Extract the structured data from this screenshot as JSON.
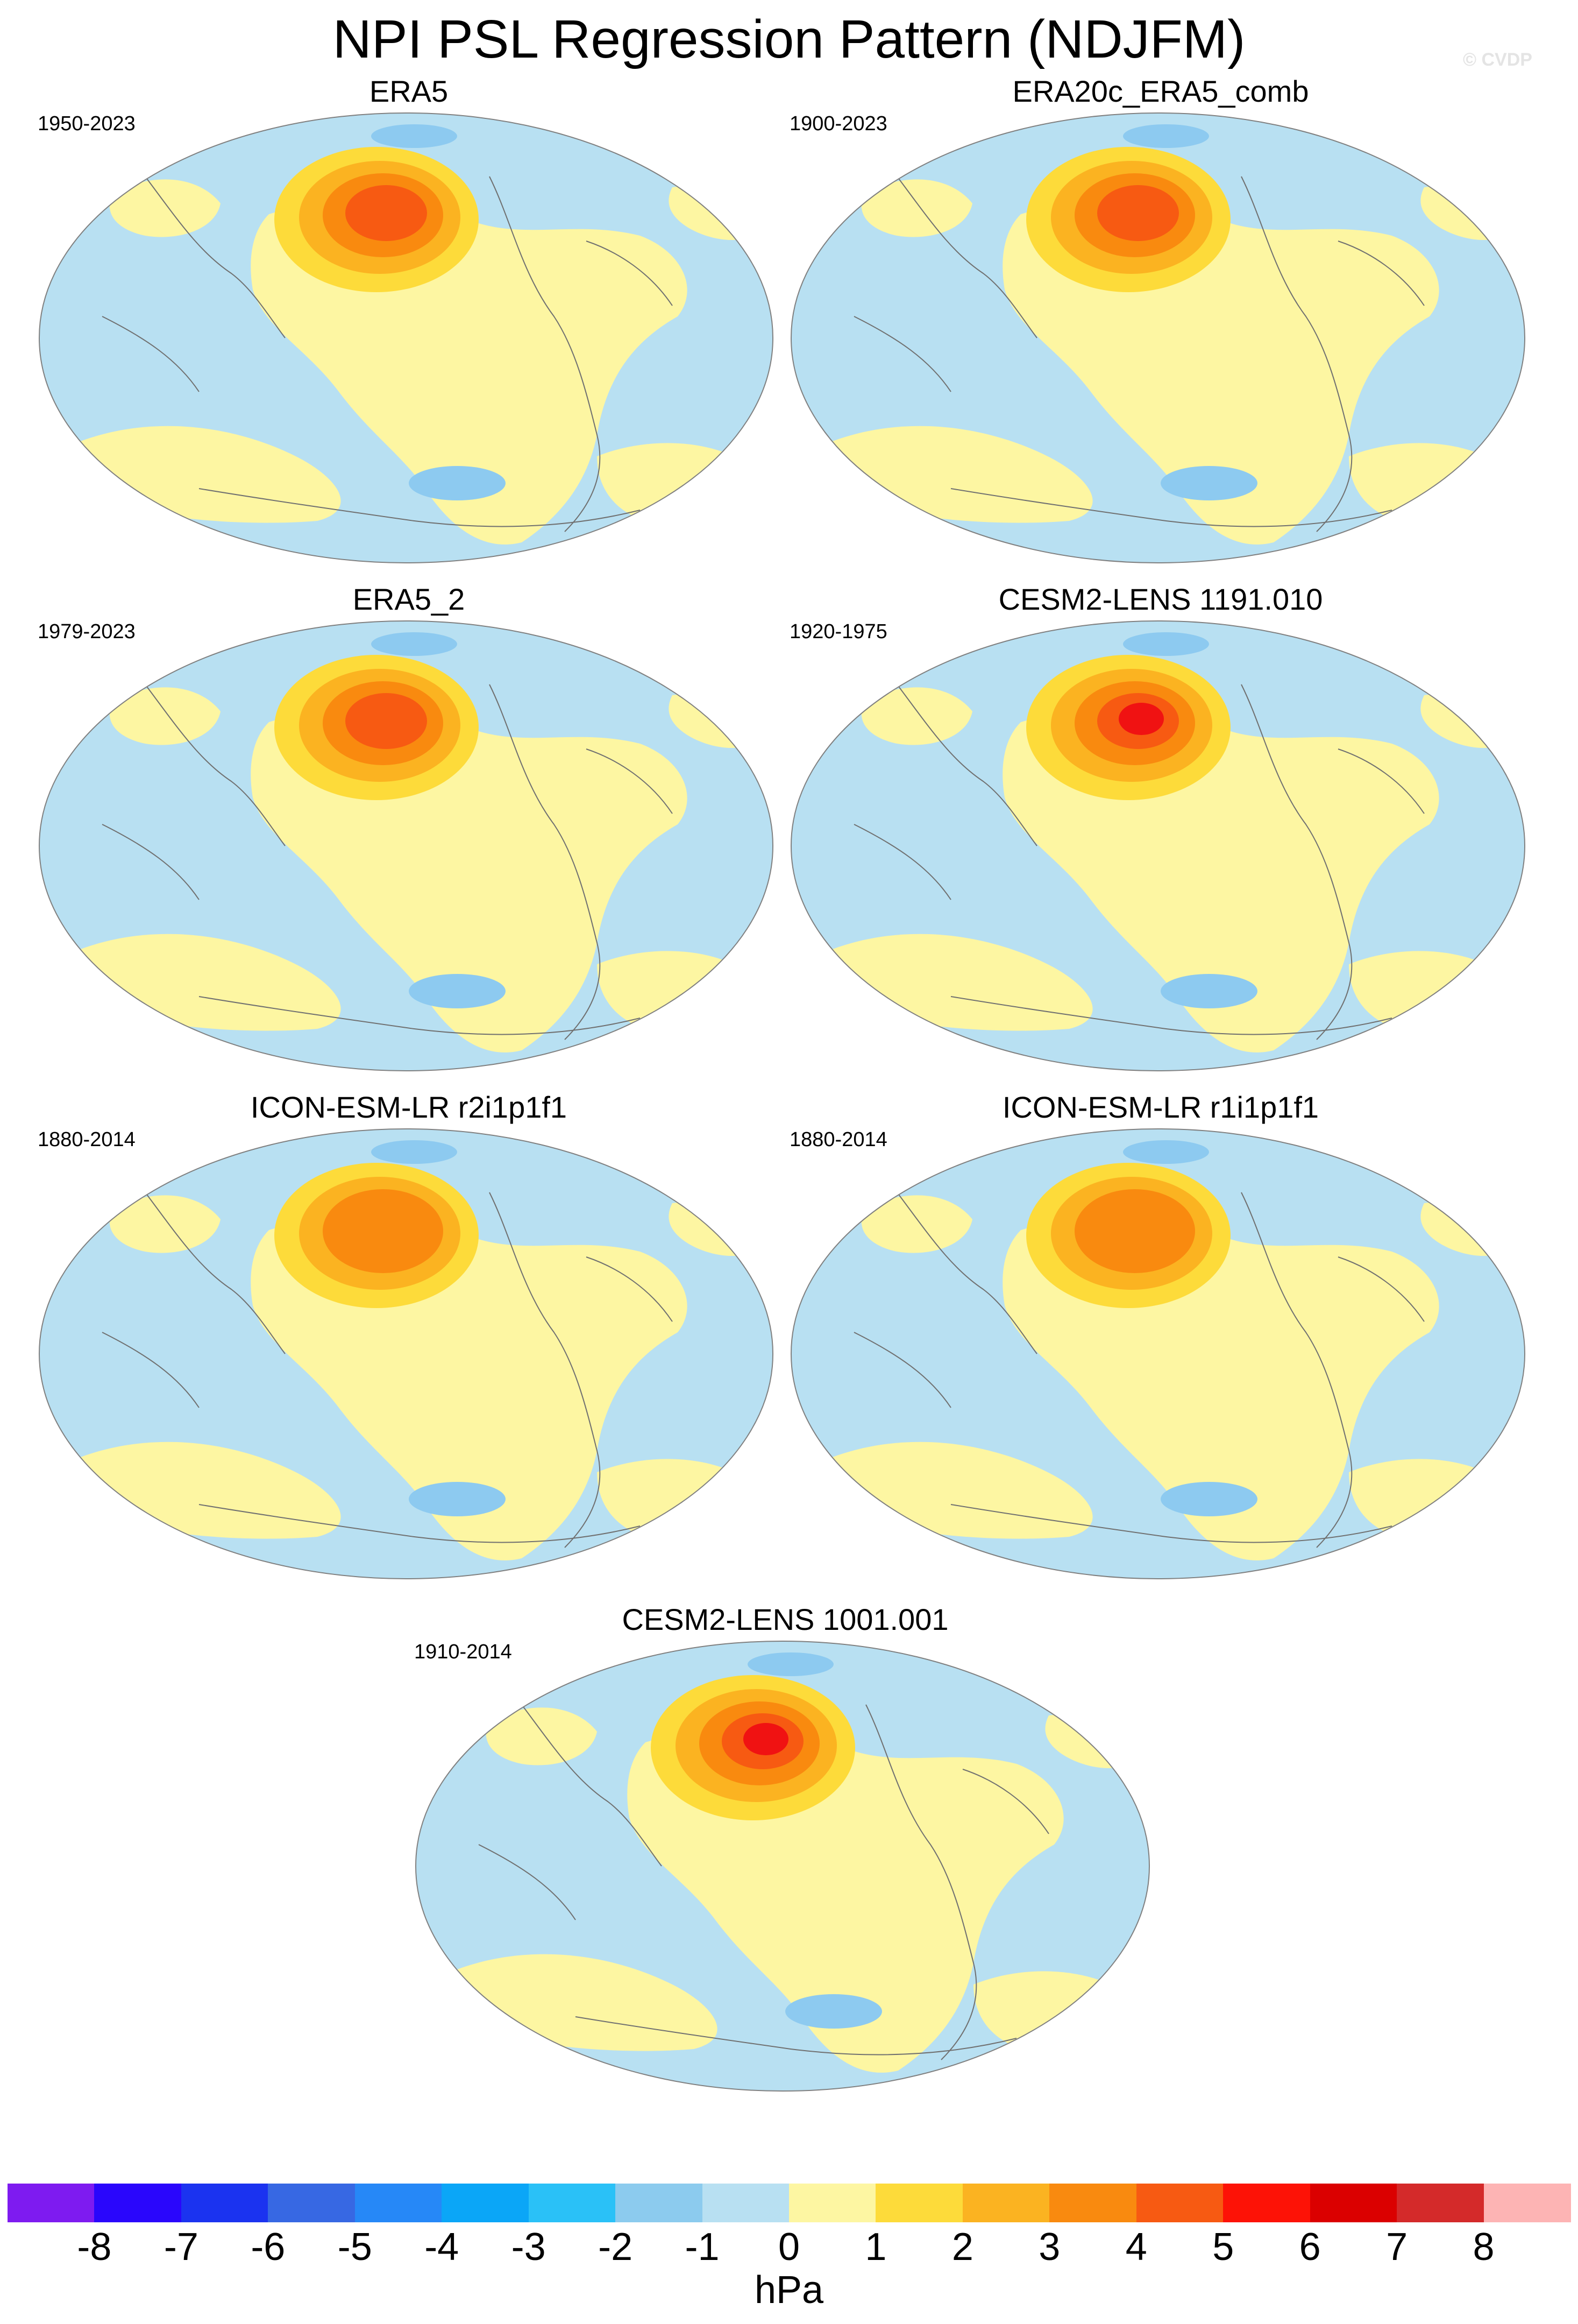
{
  "title": "NPI PSL Regression Pattern (NDJFM)",
  "watermark": "© CVDP",
  "colors": {
    "ocean_neutral": "#b8e0f2",
    "pos1": "#fdf6a2",
    "pos2": "#fddb3a",
    "pos3": "#fbb321",
    "pos4": "#f98a0f",
    "pos5": "#f75a12",
    "pos6": "#f01212",
    "neg2": "#8dcaf0",
    "neg3": "#2cb9f4",
    "coast": "#707070"
  },
  "panels": [
    {
      "title": "ERA5",
      "years": "1950-2023",
      "peak_hPa": 5
    },
    {
      "title": "ERA20c_ERA5_comb",
      "years": "1900-2023",
      "peak_hPa": 5
    },
    {
      "title": "ERA5_2",
      "years": "1979-2023",
      "peak_hPa": 5
    },
    {
      "title": "CESM2-LENS 1191.010",
      "years": "1920-1975",
      "peak_hPa": 6
    },
    {
      "title": "ICON-ESM-LR r2i1p1f1",
      "years": "1880-2014",
      "peak_hPa": 4
    },
    {
      "title": "ICON-ESM-LR r1i1p1f1",
      "years": "1880-2014",
      "peak_hPa": 4
    },
    {
      "title": "CESM2-LENS 1001.001",
      "years": "1910-2014",
      "peak_hPa": 6
    }
  ],
  "colorbar": {
    "colors": [
      "#7e1bf0",
      "#2a06fc",
      "#1b33f0",
      "#3768e3",
      "#2688f7",
      "#0ba6f7",
      "#2ac1f7",
      "#8ccbee",
      "#b8e0f2",
      "#fdf6a2",
      "#fddb3a",
      "#fbb321",
      "#f98a0f",
      "#f75a12",
      "#fd1206",
      "#db0000",
      "#d42a2a",
      "#fdb4b4"
    ],
    "ticks": [
      "-8",
      "-7",
      "-6",
      "-5",
      "-4",
      "-3",
      "-2",
      "-1",
      "0",
      "1",
      "2",
      "3",
      "4",
      "5",
      "6",
      "7",
      "8"
    ],
    "unit": "hPa"
  }
}
